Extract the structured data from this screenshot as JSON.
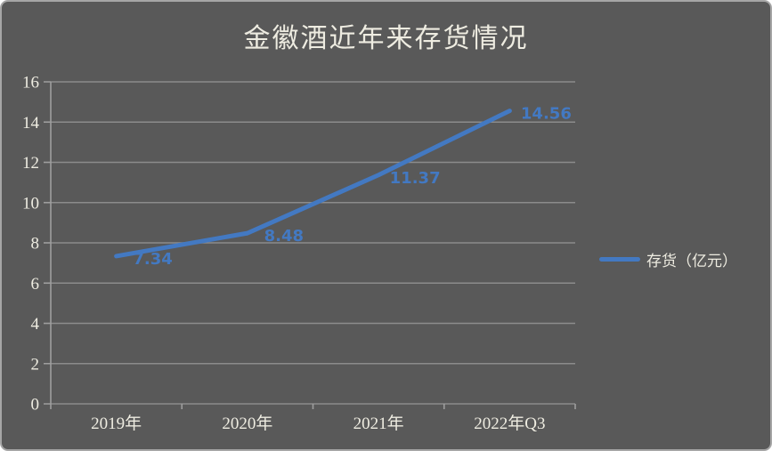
{
  "window": {
    "background_color": "#595959",
    "border_color": "#a6a6a6"
  },
  "chart_data": {
    "type": "line",
    "title": "金徽酒近年来存货情况",
    "categories": [
      "2019年",
      "2020年",
      "2021年",
      "2022年Q3"
    ],
    "series": [
      {
        "name": "存货（亿元）",
        "values": [
          7.34,
          8.48,
          11.37,
          14.56
        ]
      }
    ],
    "data_labels": [
      "7.34",
      "8.48",
      "11.37",
      "14.56"
    ],
    "xlabel": "",
    "ylabel": "",
    "ylim": [
      0,
      16
    ],
    "ytick_step": 2,
    "ytick_labels": [
      "0",
      "2",
      "4",
      "6",
      "8",
      "10",
      "12",
      "14",
      "16"
    ],
    "grid": "horizontal",
    "legend_position": "right",
    "colors": {
      "line": "#4379C2",
      "data_label": "#4379C2",
      "axis_text": "#EEECE1",
      "gridline": "#8C8C8C",
      "axis_line": "#9E9E9E",
      "background": "#595959"
    }
  },
  "legend": {
    "label": "存货（亿元）"
  }
}
